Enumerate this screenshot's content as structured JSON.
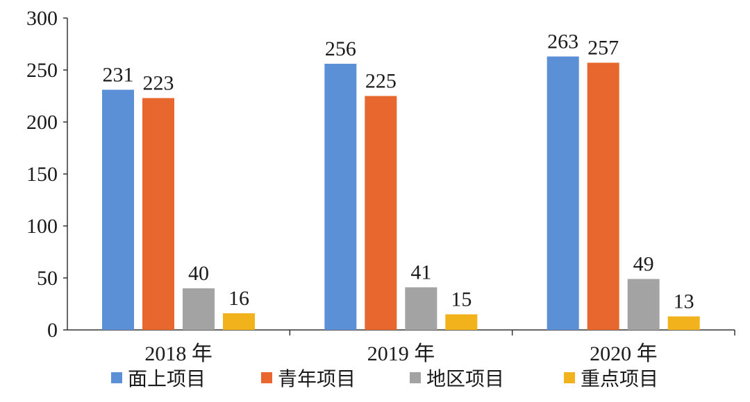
{
  "chart_data": {
    "type": "bar",
    "categories": [
      "2018 年",
      "2019 年",
      "2020 年"
    ],
    "series": [
      {
        "name": "面上项目",
        "values": [
          231,
          256,
          263
        ]
      },
      {
        "name": "青年项目",
        "values": [
          223,
          225,
          257
        ]
      },
      {
        "name": "地区项目",
        "values": [
          40,
          41,
          49
        ]
      },
      {
        "name": "重点项目",
        "values": [
          16,
          15,
          13
        ]
      }
    ],
    "colors": [
      "#5b8fd6",
      "#e8672e",
      "#a3a3a3",
      "#f2b21c"
    ],
    "title": "",
    "xlabel": "",
    "ylabel": "",
    "ylim": [
      0,
      300
    ],
    "yticks": [
      0,
      50,
      100,
      150,
      200,
      250,
      300
    ],
    "grid": false,
    "legend_position": "bottom",
    "data_labels": true
  }
}
